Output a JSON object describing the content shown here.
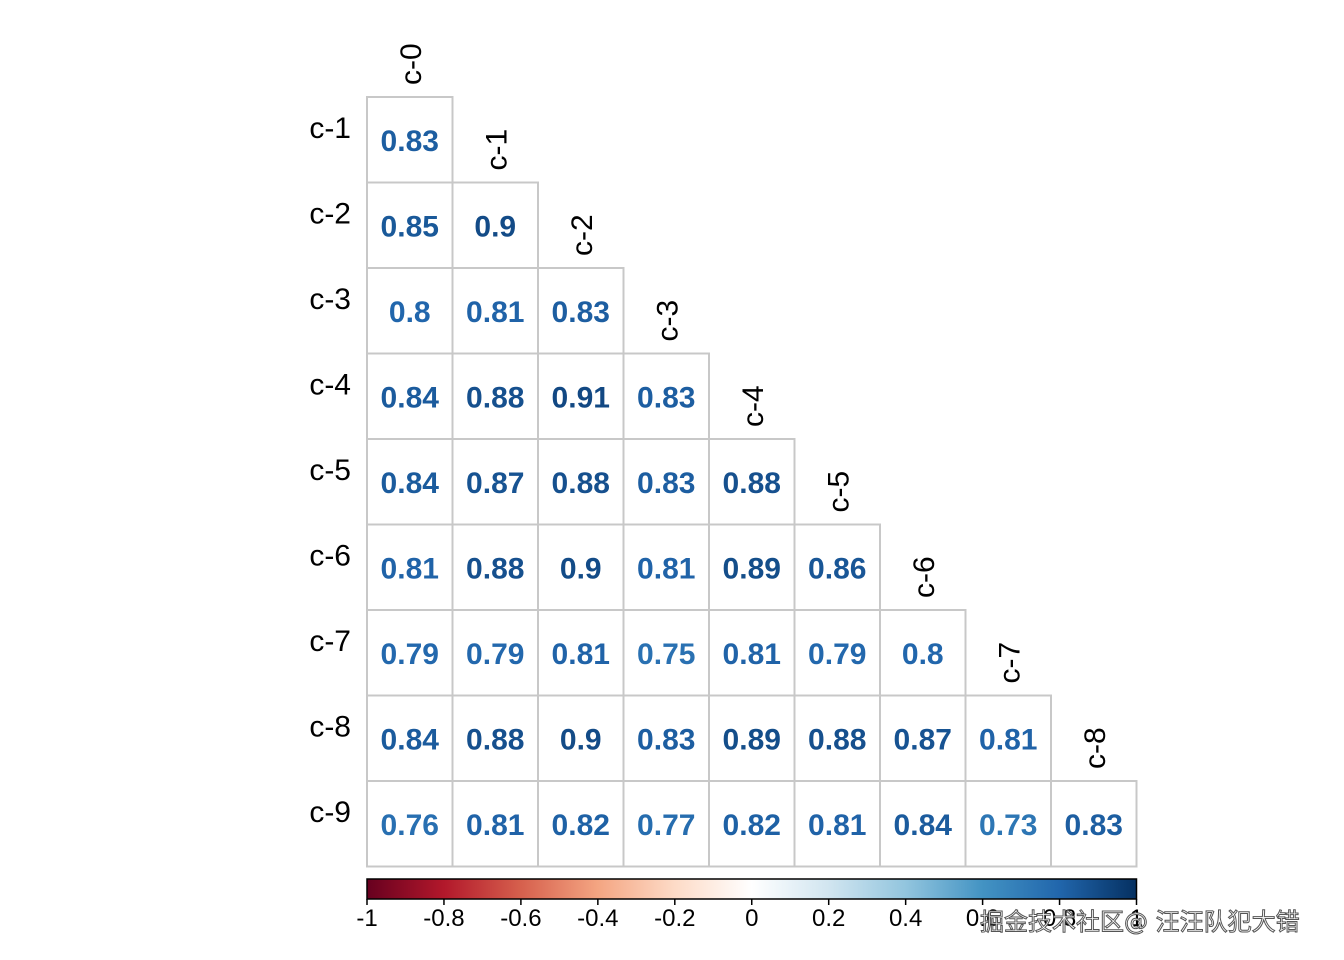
{
  "chart_data": {
    "type": "heatmap",
    "variant": "lower-triangle correlation matrix",
    "col_labels": [
      "c-0",
      "c-1",
      "c-2",
      "c-3",
      "c-4",
      "c-5",
      "c-6",
      "c-7",
      "c-8"
    ],
    "row_labels": [
      "c-1",
      "c-2",
      "c-3",
      "c-4",
      "c-5",
      "c-6",
      "c-7",
      "c-8",
      "c-9"
    ],
    "values": [
      [
        0.83
      ],
      [
        0.85,
        0.9
      ],
      [
        0.8,
        0.81,
        0.83
      ],
      [
        0.84,
        0.88,
        0.91,
        0.83
      ],
      [
        0.84,
        0.87,
        0.88,
        0.83,
        0.88
      ],
      [
        0.81,
        0.88,
        0.9,
        0.81,
        0.89,
        0.86
      ],
      [
        0.79,
        0.79,
        0.81,
        0.75,
        0.81,
        0.79,
        0.8
      ],
      [
        0.84,
        0.88,
        0.9,
        0.83,
        0.89,
        0.88,
        0.87,
        0.81
      ],
      [
        0.76,
        0.81,
        0.82,
        0.77,
        0.82,
        0.81,
        0.84,
        0.73,
        0.83
      ]
    ],
    "value_labels": [
      [
        "0.83"
      ],
      [
        "0.85",
        "0.9"
      ],
      [
        "0.8",
        "0.81",
        "0.83"
      ],
      [
        "0.84",
        "0.88",
        "0.91",
        "0.83"
      ],
      [
        "0.84",
        "0.87",
        "0.88",
        "0.83",
        "0.88"
      ],
      [
        "0.81",
        "0.88",
        "0.9",
        "0.81",
        "0.89",
        "0.86"
      ],
      [
        "0.79",
        "0.79",
        "0.81",
        "0.75",
        "0.81",
        "0.79",
        "0.8"
      ],
      [
        "0.84",
        "0.88",
        "0.9",
        "0.83",
        "0.89",
        "0.88",
        "0.87",
        "0.81"
      ],
      [
        "0.76",
        "0.81",
        "0.82",
        "0.77",
        "0.82",
        "0.81",
        "0.84",
        "0.73",
        "0.83"
      ]
    ],
    "colorbar": {
      "range": [
        -1,
        1
      ],
      "ticks": [
        "-1",
        "-0.8",
        "-0.6",
        "-0.4",
        "-0.2",
        "0",
        "0.2",
        "0.4",
        "0.6",
        "0.8",
        "1"
      ],
      "colors": [
        "#67001f",
        "#b2182b",
        "#d6604d",
        "#f4a582",
        "#fddbc7",
        "#ffffff",
        "#d1e5f0",
        "#92c5de",
        "#4393c3",
        "#2166ac",
        "#053061"
      ],
      "placement": "bottom"
    }
  },
  "watermark": "掘金技术社区@ 汪汪队犯大错"
}
